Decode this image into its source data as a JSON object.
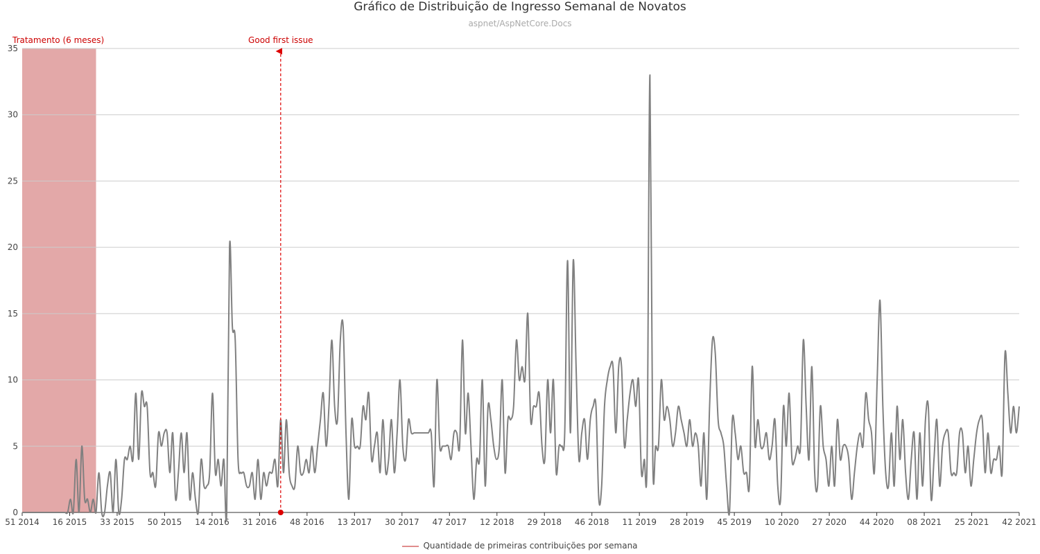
{
  "chart_data": {
    "type": "line",
    "title": "Gráfico de Distribuição de Ingresso Semanal de Novatos",
    "subtitle": "aspnet/AspNetCore.Docs",
    "xlabel": "",
    "ylabel": "",
    "ylim": [
      0,
      35
    ],
    "y_ticks": [
      "0",
      "5",
      "10",
      "15",
      "20",
      "25",
      "30",
      "35"
    ],
    "x_ticks": [
      "51 2014",
      "16 2015",
      "33 2015",
      "50 2015",
      "14 2016",
      "31 2016",
      "48 2016",
      "13 2017",
      "30 2017",
      "47 2017",
      "12 2018",
      "29 2018",
      "46 2018",
      "11 2019",
      "28 2019",
      "45 2019",
      "10 2020",
      "27 2020",
      "44 2020",
      "08 2021",
      "25 2021",
      "42 2021"
    ],
    "grid": "horizontal",
    "legend_position": "bottom-center",
    "colors": {
      "line": "#808080",
      "shade": "#e3a8a8",
      "annotation": "#dd0000",
      "legend_line": "#e08c8c"
    },
    "annotations": {
      "treatment": {
        "label": "Tratamento (6 meses)",
        "from_week": 0,
        "to_week": 26
      },
      "good_first_issue": {
        "label": "Good first issue",
        "week": 91
      }
    },
    "series": [
      {
        "name": "Quantidade de primeiras contribuições por semana",
        "values": [
          0,
          0,
          0,
          0,
          0,
          0,
          0,
          0,
          0,
          0,
          0,
          0,
          0,
          0,
          0,
          0,
          0,
          1,
          0,
          4,
          0,
          5,
          1,
          1,
          0,
          1,
          0,
          3,
          0,
          0,
          2,
          3,
          0,
          4,
          0,
          1,
          4,
          4,
          5,
          4,
          9,
          4,
          9,
          8,
          8,
          3,
          3,
          2,
          6,
          5,
          6,
          6,
          3,
          6,
          1,
          3,
          6,
          3,
          6,
          1,
          3,
          1,
          0,
          4,
          2,
          2,
          3,
          9,
          3,
          4,
          2,
          4,
          0,
          20,
          14,
          13,
          4,
          3,
          3,
          2,
          2,
          3,
          1,
          4,
          1,
          3,
          2,
          3,
          3,
          4,
          2,
          7,
          3,
          7,
          3,
          2,
          2,
          5,
          3,
          3,
          4,
          3,
          5,
          3,
          5,
          7,
          9,
          5,
          8,
          13,
          8,
          7,
          13,
          14,
          6,
          1,
          7,
          5,
          5,
          5,
          8,
          7,
          9,
          4,
          5,
          6,
          3,
          7,
          3,
          4,
          7,
          3,
          6,
          10,
          5,
          4,
          7,
          6,
          6,
          6,
          6,
          6,
          6,
          6,
          6,
          2,
          10,
          5,
          5,
          5,
          5,
          4,
          6,
          6,
          5,
          13,
          6,
          9,
          5,
          1,
          4,
          4,
          10,
          2,
          8,
          7,
          5,
          4,
          5,
          10,
          3,
          7,
          7,
          8,
          13,
          10,
          11,
          10,
          15,
          7,
          8,
          8,
          9,
          5,
          4,
          10,
          6,
          10,
          3,
          5,
          5,
          6,
          19,
          6,
          19,
          11,
          4,
          6,
          7,
          4,
          7,
          8,
          8,
          1,
          2,
          8,
          10,
          11,
          11,
          6,
          11,
          11,
          5,
          7,
          9,
          10,
          8,
          10,
          3,
          4,
          4,
          33,
          4,
          5,
          5,
          10,
          7,
          8,
          7,
          5,
          6,
          8,
          7,
          6,
          5,
          7,
          5,
          6,
          5,
          2,
          6,
          1,
          8,
          13,
          12,
          7,
          6,
          5,
          2,
          0,
          7,
          6,
          4,
          5,
          3,
          3,
          2,
          11,
          5,
          7,
          5,
          5,
          6,
          4,
          5,
          7,
          2,
          1,
          8,
          5,
          9,
          4,
          4,
          5,
          5,
          13,
          8,
          4,
          11,
          3,
          2,
          8,
          5,
          4,
          2,
          5,
          2,
          7,
          4,
          5,
          5,
          4,
          1,
          3,
          5,
          6,
          5,
          9,
          7,
          6,
          3,
          10,
          16,
          8,
          3,
          2,
          6,
          2,
          8,
          4,
          7,
          3,
          1,
          4,
          6,
          1,
          6,
          2,
          7,
          8,
          1,
          4,
          7,
          2,
          5,
          6,
          6,
          3,
          3,
          3,
          6,
          6,
          3,
          5,
          2,
          4,
          6,
          7,
          7,
          3,
          6,
          3,
          4,
          4,
          5,
          3,
          12,
          9,
          6,
          8,
          6,
          8
        ]
      }
    ]
  }
}
